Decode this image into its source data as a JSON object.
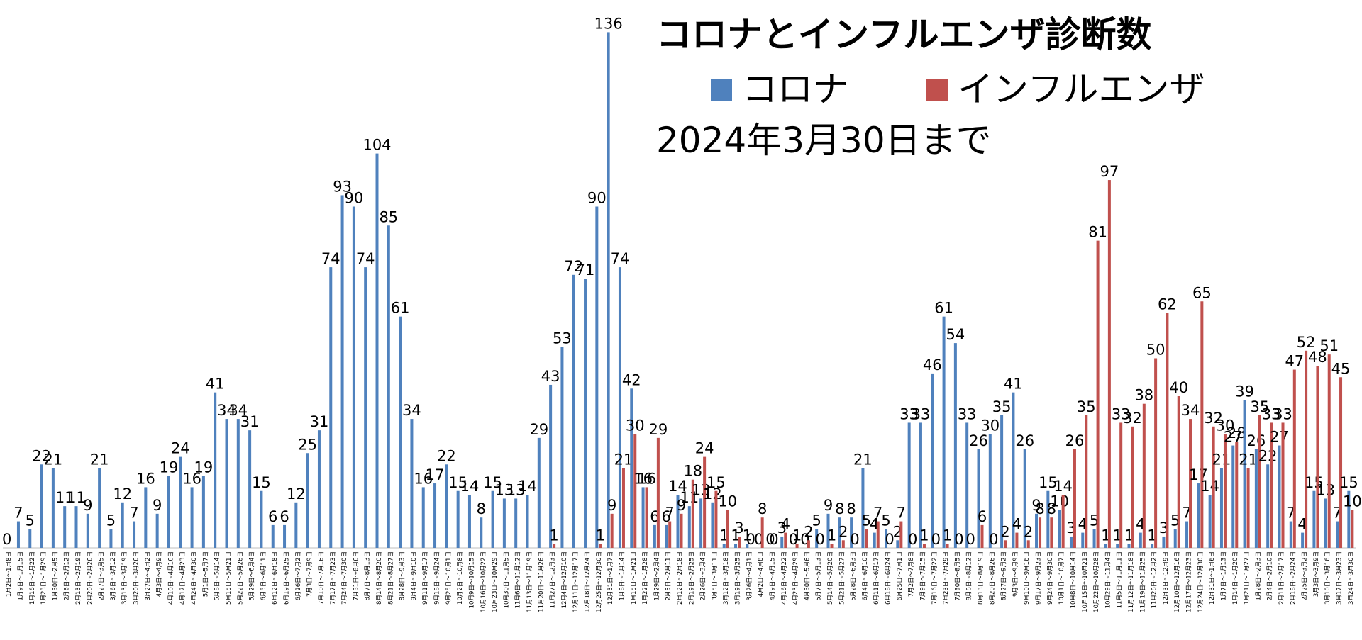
{
  "chart_data": {
    "type": "bar",
    "title": "コロナとインフルエンザ診断数",
    "subtitle": "2024年3月30日まで",
    "categories": [
      "1月2日～1月8日",
      "1月9日～1月15日",
      "1月16日～1月22日",
      "1月23日～1月29日",
      "1月30日～2月5日",
      "2月6日～2月12日",
      "2月13日～2月19日",
      "2月20日～2月26日",
      "2月27日～3月5日",
      "3月6日～3月12日",
      "3月13日～3月19日",
      "3月20日～3月26日",
      "3月27日～4月2日",
      "4月3日～4月9日",
      "4月10日～4月16日",
      "4月17日～4月23日",
      "4月24日～4月30日",
      "5月1日～5月7日",
      "5月8日～5月14日",
      "5月15日～5月21日",
      "5月22日～5月28日",
      "5月29日～6月4日",
      "6月5日～6月11日",
      "6月12日～6月18日",
      "6月19日～6月25日",
      "6月26日～7月2日",
      "7月3日～7月9日",
      "7月10日～7月16日",
      "7月17日～7月23日",
      "7月24日～7月30日",
      "7月31日～8月6日",
      "8月7日～8月13日",
      "8月14日～8月20日",
      "8月21日～8月27日",
      "8月28日～9月3日",
      "9月4日～9月10日",
      "9月11日～9月17日",
      "9月18日～9月24日",
      "9月25日～10月1日",
      "10月2日～10月8日",
      "10月9日～10月15日",
      "10月16日～10月22日",
      "10月23日～10月29日",
      "10月30日～11月5日",
      "11月6日～11月12日",
      "11月13日～11月19日",
      "11月20日～11月26日",
      "11月27日～12月3日",
      "12月4日～12月10日",
      "12月11日～12月17日",
      "12月18日～12月24日",
      "12月25日～12月30日",
      "12月31日～1月7日",
      "1月8日～1月14日",
      "1月15日～1月21日",
      "1月22日～1月28日",
      "1月29日～2月4日",
      "2月5日～2月11日",
      "2月12日～2月18日",
      "2月19日～2月25日",
      "2月26日～3月4日",
      "3月5日～3月11日",
      "3月12日～3月18日",
      "3月19日～3月25日",
      "3月26日～4月1日",
      "4月2日～4月8日",
      "4月9日～4月15日",
      "4月16日～4月22日",
      "4月23日～4月29日",
      "4月30日～5月6日",
      "5月7日～5月13日",
      "5月14日～5月20日",
      "5月21日～5月27日",
      "5月28日～6月3日",
      "6月4日～6月10日",
      "6月11日～6月17日",
      "6月18日～6月24日",
      "6月25日～7月1日",
      "7月2日～7月8日",
      "7月9日～7月15日",
      "7月16日～7月22日",
      "7月23日～7月29日",
      "7月30日～8月5日",
      "8月6日～8月12日",
      "8月13日～8月19日",
      "8月20日～8月26日",
      "8月27日～9月2日",
      "9月3日～9月9日",
      "9月10日～9月16日",
      "9月17日～9月23日",
      "9月24日～9月30日",
      "10月1日～10月7日",
      "10月8日～10月14日",
      "10月15日～10月21日",
      "10月22日～10月28日",
      "10月29日～11月4日",
      "11月5日～11月11日",
      "11月12日～11月18日",
      "11月19日～11月25日",
      "11月26日～12月2日",
      "12月3日～12月9日",
      "12月10日～12月16日",
      "12月17日～12月23日",
      "12月24日～12月30日",
      "12月31日～1月6日",
      "1月7日～1月13日",
      "1月14日～1月20日",
      "1月21日～1月27日",
      "1月28日～2月3日",
      "2月4日～2月10日",
      "2月11日～2月17日",
      "2月18日～2月24日",
      "2月25日～3月2日",
      "3月3日～3月9日",
      "3月10日～3月16日",
      "3月17日～3月23日",
      "3月24日～3月30日"
    ],
    "series": [
      {
        "name": "コロナ",
        "color": "#4f81bd",
        "values": [
          0,
          7,
          5,
          22,
          21,
          11,
          11,
          9,
          21,
          5,
          12,
          7,
          16,
          9,
          19,
          24,
          16,
          19,
          41,
          34,
          34,
          31,
          15,
          6,
          6,
          12,
          25,
          31,
          74,
          93,
          90,
          74,
          104,
          85,
          61,
          34,
          16,
          17,
          22,
          15,
          14,
          8,
          15,
          13,
          13,
          14,
          29,
          43,
          53,
          72,
          71,
          90,
          136,
          74,
          42,
          16,
          6,
          6,
          14,
          11,
          13,
          12,
          1,
          1,
          1,
          0,
          0,
          3,
          0,
          0,
          5,
          9,
          8,
          8,
          21,
          4,
          5,
          2,
          33,
          33,
          46,
          61,
          54,
          33,
          26,
          30,
          35,
          41,
          26,
          9,
          15,
          10,
          3,
          4,
          5,
          1,
          1,
          1,
          4,
          1,
          3,
          5,
          7,
          17,
          14,
          21,
          27,
          39,
          26,
          22,
          27,
          7,
          4,
          15,
          13,
          7,
          15
        ]
      },
      {
        "name": "インフルエンザ",
        "color": "#c0504d",
        "values": [
          null,
          null,
          null,
          null,
          null,
          null,
          null,
          null,
          null,
          null,
          null,
          null,
          null,
          null,
          null,
          null,
          null,
          null,
          null,
          null,
          null,
          null,
          null,
          null,
          null,
          null,
          null,
          null,
          null,
          null,
          null,
          null,
          null,
          null,
          null,
          null,
          null,
          null,
          null,
          null,
          null,
          null,
          null,
          null,
          null,
          null,
          null,
          1,
          null,
          null,
          null,
          1,
          9,
          21,
          30,
          16,
          29,
          7,
          9,
          18,
          24,
          15,
          10,
          3,
          0,
          8,
          0,
          4,
          1,
          2,
          0,
          1,
          2,
          0,
          5,
          7,
          0,
          7,
          0,
          1,
          0,
          1,
          0,
          0,
          6,
          0,
          2,
          4,
          2,
          8,
          8,
          14,
          26,
          35,
          81,
          97,
          33,
          32,
          38,
          50,
          62,
          40,
          34,
          65,
          32,
          30,
          28,
          21,
          35,
          33,
          33,
          47,
          52,
          48,
          51,
          45,
          10
        ]
      }
    ],
    "ylim": [
      0,
      140
    ]
  }
}
